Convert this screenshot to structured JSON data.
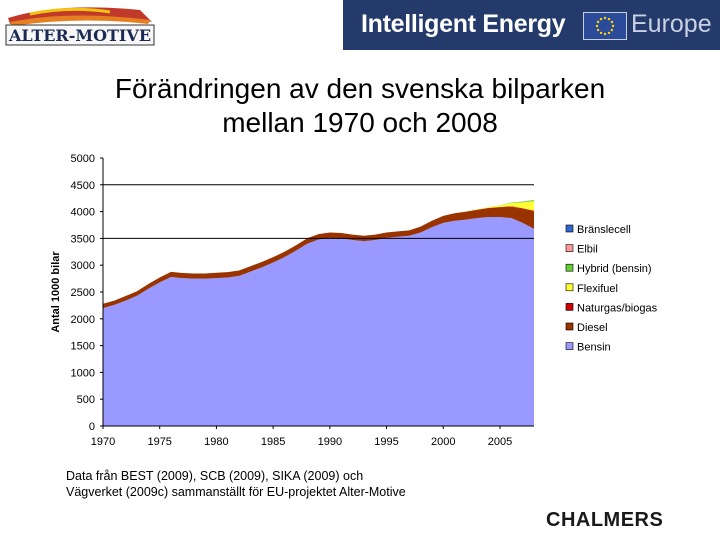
{
  "header": {
    "left_logo_text": "ALTER-MOTIVE",
    "banner_text": "Intelligent Energy",
    "banner_region": "Europe"
  },
  "slide_title_line1": "Förändringen av den svenska bilparken",
  "slide_title_line2": "mellan 1970 och 2008",
  "source_line1": "Data från BEST (2009), SCB (2009), SIKA (2009) och",
  "source_line2": "Vägverket (2009c) sammanställt för EU-projektet Alter-Motive",
  "footer_logo": "CHALMERS",
  "colors": {
    "Bensin": "#9999ff",
    "Diesel": "#993300",
    "Naturgas/biogas": "#cc0000",
    "Flexifuel": "#ffff33",
    "Hybrid (bensin)": "#66cc33",
    "Elbil": "#ff9999",
    "Bränslecell": "#3366cc",
    "gridline": "#000000",
    "banner": "#243a6b"
  },
  "chart_data": {
    "type": "area",
    "stacked": true,
    "ylabel": "Antal 1000 bilar",
    "xlabel": "",
    "x_tick_labels": [
      "1970",
      "1975",
      "1980",
      "1985",
      "1990",
      "1995",
      "2000",
      "2005"
    ],
    "y_tick_labels": [
      "0",
      "500",
      "1000",
      "1500",
      "2000",
      "2500",
      "3000",
      "3500",
      "4000",
      "4500",
      "5000"
    ],
    "ylim": [
      0,
      5000
    ],
    "xlim": [
      1970,
      2008
    ],
    "grid": "horizontal lines at 3500 and 4500",
    "legend_position": "right",
    "x": [
      1970,
      1971,
      1972,
      1973,
      1974,
      1975,
      1976,
      1977,
      1978,
      1979,
      1980,
      1981,
      1982,
      1983,
      1984,
      1985,
      1986,
      1987,
      1988,
      1989,
      1990,
      1991,
      1992,
      1993,
      1994,
      1995,
      1996,
      1997,
      1998,
      1999,
      2000,
      2001,
      2002,
      2003,
      2004,
      2005,
      2006,
      2007,
      2008
    ],
    "series": [
      {
        "name": "Bensin",
        "values": [
          2200,
          2260,
          2340,
          2430,
          2560,
          2680,
          2780,
          2760,
          2750,
          2750,
          2760,
          2770,
          2800,
          2880,
          2960,
          3050,
          3150,
          3270,
          3400,
          3480,
          3510,
          3500,
          3470,
          3450,
          3470,
          3510,
          3530,
          3550,
          3610,
          3710,
          3790,
          3830,
          3850,
          3880,
          3900,
          3900,
          3880,
          3790,
          3680
        ]
      },
      {
        "name": "Diesel",
        "values": [
          80,
          80,
          85,
          85,
          90,
          90,
          95,
          95,
          95,
          95,
          100,
          100,
          100,
          100,
          100,
          100,
          100,
          100,
          100,
          100,
          100,
          100,
          100,
          100,
          100,
          100,
          100,
          100,
          110,
          120,
          130,
          140,
          150,
          155,
          165,
          180,
          210,
          260,
          320
        ]
      },
      {
        "name": "Naturgas/biogas",
        "values": [
          0,
          0,
          0,
          0,
          0,
          0,
          0,
          0,
          0,
          0,
          0,
          0,
          0,
          0,
          0,
          0,
          0,
          0,
          0,
          0,
          0,
          0,
          0,
          0,
          0,
          0,
          0,
          0,
          0,
          0,
          0,
          0,
          0,
          2,
          4,
          6,
          9,
          12,
          15
        ]
      },
      {
        "name": "Flexifuel",
        "values": [
          0,
          0,
          0,
          0,
          0,
          0,
          0,
          0,
          0,
          0,
          0,
          0,
          0,
          0,
          0,
          0,
          0,
          0,
          0,
          0,
          0,
          0,
          0,
          0,
          0,
          0,
          0,
          0,
          0,
          0,
          0,
          0,
          3,
          8,
          15,
          30,
          60,
          110,
          180
        ]
      },
      {
        "name": "Hybrid (bensin)",
        "values": [
          0,
          0,
          0,
          0,
          0,
          0,
          0,
          0,
          0,
          0,
          0,
          0,
          0,
          0,
          0,
          0,
          0,
          0,
          0,
          0,
          0,
          0,
          0,
          0,
          0,
          0,
          0,
          0,
          0,
          0,
          0,
          0,
          0,
          0,
          0,
          3,
          8,
          15,
          22
        ]
      },
      {
        "name": "Elbil",
        "values": [
          0,
          0,
          0,
          0,
          0,
          0,
          0,
          0,
          0,
          0,
          0,
          0,
          0,
          0,
          0,
          0,
          0,
          0,
          0,
          0,
          0,
          0,
          0,
          0,
          0,
          0,
          0,
          0,
          0,
          0,
          0,
          0,
          0,
          0,
          0,
          0,
          0,
          1,
          1
        ]
      },
      {
        "name": "Bränslecell",
        "values": [
          0,
          0,
          0,
          0,
          0,
          0,
          0,
          0,
          0,
          0,
          0,
          0,
          0,
          0,
          0,
          0,
          0,
          0,
          0,
          0,
          0,
          0,
          0,
          0,
          0,
          0,
          0,
          0,
          0,
          0,
          0,
          0,
          0,
          0,
          0,
          0,
          0,
          0,
          0
        ]
      }
    ],
    "legend_order": [
      "Bränslecell",
      "Elbil",
      "Hybrid (bensin)",
      "Flexifuel",
      "Naturgas/biogas",
      "Diesel",
      "Bensin"
    ]
  }
}
